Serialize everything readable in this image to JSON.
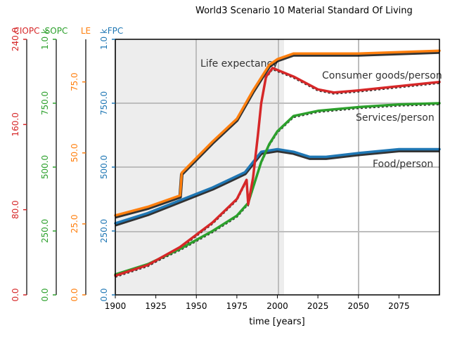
{
  "chart_data": {
    "type": "line",
    "title": "World3 Scenario 10 Material Standard Of Living",
    "xlabel": "time [years]",
    "xlim": [
      1900,
      2100
    ],
    "x_ticks": [
      "1900",
      "1925",
      "1950",
      "1975",
      "2000",
      "2025",
      "2050",
      "2075"
    ],
    "background_image_labels": [
      "Life expectancy",
      "Consumer goods/person",
      "Services/person",
      "Food/person"
    ],
    "axes": [
      {
        "key": "ciopc",
        "label": "CIOPC",
        "color": "#d62728",
        "ylim": [
          0,
          240
        ],
        "ticks": [
          "0.0",
          "80.0",
          "160.0",
          "240.0"
        ]
      },
      {
        "key": "sopc",
        "label": "SOPC",
        "color": "#2ca02c",
        "ylim": [
          0,
          1000
        ],
        "ticks": [
          "0.0",
          "250.0",
          "500.0",
          "750.0",
          "1.0 k"
        ]
      },
      {
        "key": "le",
        "label": "LE",
        "color": "#ff7f0e",
        "ylim": [
          0,
          90
        ],
        "ticks": [
          "0.0",
          "25.0",
          "50.0",
          "75.0"
        ]
      },
      {
        "key": "fpc",
        "label": "FPC",
        "color": "#1f77b4",
        "ylim": [
          0,
          1000
        ],
        "ticks": [
          "0.0",
          "250.0",
          "500.0",
          "750.0",
          "1.0 k"
        ]
      }
    ],
    "series": [
      {
        "name": "LE",
        "axis": "le",
        "color": "#ff7f0e",
        "x": [
          1900,
          1920,
          1940,
          1941,
          1960,
          1975,
          1985,
          1995,
          2000,
          2010,
          2050,
          2100
        ],
        "y": [
          28,
          31,
          35,
          43,
          54,
          62,
          72,
          81,
          83,
          85,
          85,
          86
        ]
      },
      {
        "name": "FPC",
        "axis": "fpc",
        "color": "#1f77b4",
        "x": [
          1900,
          1920,
          1940,
          1960,
          1970,
          1980,
          1985,
          1990,
          2000,
          2010,
          2020,
          2030,
          2050,
          2075,
          2100
        ],
        "y": [
          280,
          320,
          370,
          420,
          450,
          480,
          520,
          560,
          570,
          560,
          540,
          540,
          555,
          570,
          570
        ]
      },
      {
        "name": "SOPC",
        "axis": "sopc",
        "color": "#2ca02c",
        "x": [
          1900,
          1920,
          1940,
          1960,
          1975,
          1982,
          1985,
          1990,
          1995,
          2000,
          2010,
          2025,
          2050,
          2075,
          2100
        ],
        "y": [
          80,
          120,
          180,
          250,
          310,
          360,
          420,
          520,
          590,
          640,
          700,
          720,
          735,
          745,
          750
        ]
      },
      {
        "name": "CIOPC",
        "axis": "ciopc",
        "color": "#d62728",
        "x": [
          1900,
          1920,
          1940,
          1960,
          1975,
          1981,
          1982,
          1985,
          1988,
          1990,
          1993,
          1997,
          2010,
          2025,
          2035,
          2050,
          2075,
          2100
        ],
        "y": [
          18,
          28,
          45,
          68,
          90,
          108,
          85,
          110,
          150,
          180,
          205,
          213,
          205,
          193,
          190,
          192,
          196,
          200
        ]
      }
    ]
  }
}
